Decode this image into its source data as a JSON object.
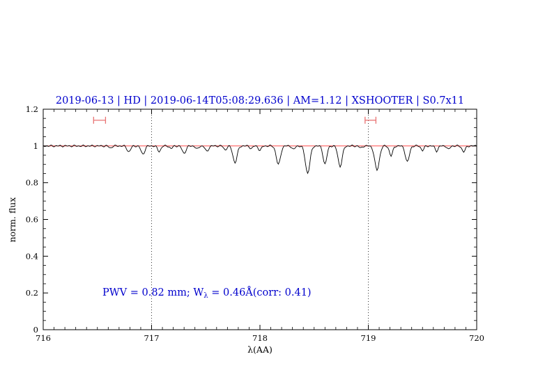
{
  "figure": {
    "title": "2019-06-13 | HD | 2019-06-14T05:08:29.636 | AM=1.12 | XSHOOTER | S0.7x11",
    "xlabel": "λ(AA)",
    "ylabel": "norm. flux",
    "annotation": {
      "prefix": "PWV = 0.82 mm; W",
      "sub": "λ",
      "suffix": " = 0.46Å(corr: 0.41)"
    },
    "colors": {
      "title": "#0000cd",
      "annotation": "#0000cd",
      "continuum": "#ff3030",
      "markers": "#e87272",
      "spectrum": "#000000",
      "axis": "#000000",
      "background": "#ffffff"
    }
  },
  "chart_data": {
    "type": "line",
    "title": "2019-06-13 | HD | 2019-06-14T05:08:29.636 | AM=1.12 | XSHOOTER | S0.7x11",
    "xlabel": "λ(AA)",
    "ylabel": "norm. flux",
    "xlim": [
      716,
      720
    ],
    "ylim": [
      0,
      1.2
    ],
    "xtick_values": [
      716,
      717,
      718,
      719,
      720
    ],
    "xtick_labels": [
      "716",
      "717",
      "718",
      "719",
      "720"
    ],
    "ytick_values": [
      0,
      0.2,
      0.4,
      0.6,
      0.8,
      1,
      1.2
    ],
    "ytick_labels": [
      "0",
      "0.2",
      "0.4",
      "0.6",
      "0.8",
      "1",
      "1.2"
    ],
    "x_minor_step": 0.1,
    "y_minor_step": 0.05,
    "dotted_vlines": [
      717,
      719
    ],
    "grid": false,
    "legend": "none",
    "series": [
      {
        "name": "observed spectrum",
        "type": "absorption-spectrum",
        "color": "#000000",
        "baseline": 1.0,
        "absorption_lines": [
          [
            716.62,
            0.012,
            0.012
          ],
          [
            716.79,
            0.032,
            0.016
          ],
          [
            716.92,
            0.045,
            0.017
          ],
          [
            717.07,
            0.03,
            0.015
          ],
          [
            717.18,
            0.015,
            0.012
          ],
          [
            717.3,
            0.04,
            0.017
          ],
          [
            717.42,
            0.018,
            0.013
          ],
          [
            717.51,
            0.03,
            0.015
          ],
          [
            717.68,
            0.022,
            0.013
          ],
          [
            717.77,
            0.092,
            0.019
          ],
          [
            717.92,
            0.015,
            0.012
          ],
          [
            718.0,
            0.025,
            0.013
          ],
          [
            718.17,
            0.102,
            0.019
          ],
          [
            718.31,
            0.02,
            0.013
          ],
          [
            718.44,
            0.148,
            0.021
          ],
          [
            718.6,
            0.1,
            0.017
          ],
          [
            718.74,
            0.112,
            0.019
          ],
          [
            718.93,
            0.012,
            0.012
          ],
          [
            719.08,
            0.132,
            0.021
          ],
          [
            719.21,
            0.055,
            0.015
          ],
          [
            719.36,
            0.088,
            0.018
          ],
          [
            719.5,
            0.025,
            0.013
          ],
          [
            719.63,
            0.028,
            0.013
          ],
          [
            719.74,
            0.02,
            0.012
          ],
          [
            719.88,
            0.032,
            0.015
          ]
        ]
      },
      {
        "name": "continuum model",
        "type": "hline",
        "value": 1.0,
        "color": "#ff3030"
      }
    ],
    "range_markers": [
      {
        "x_center": 716.52,
        "half_width": 0.055,
        "y": 1.14
      },
      {
        "x_center": 719.02,
        "half_width": 0.05,
        "y": 1.14
      }
    ],
    "annotation": {
      "text": "PWV = 0.82 mm; Wλ = 0.46Å(corr: 0.41)",
      "x": 716.55,
      "y": 0.185
    }
  }
}
